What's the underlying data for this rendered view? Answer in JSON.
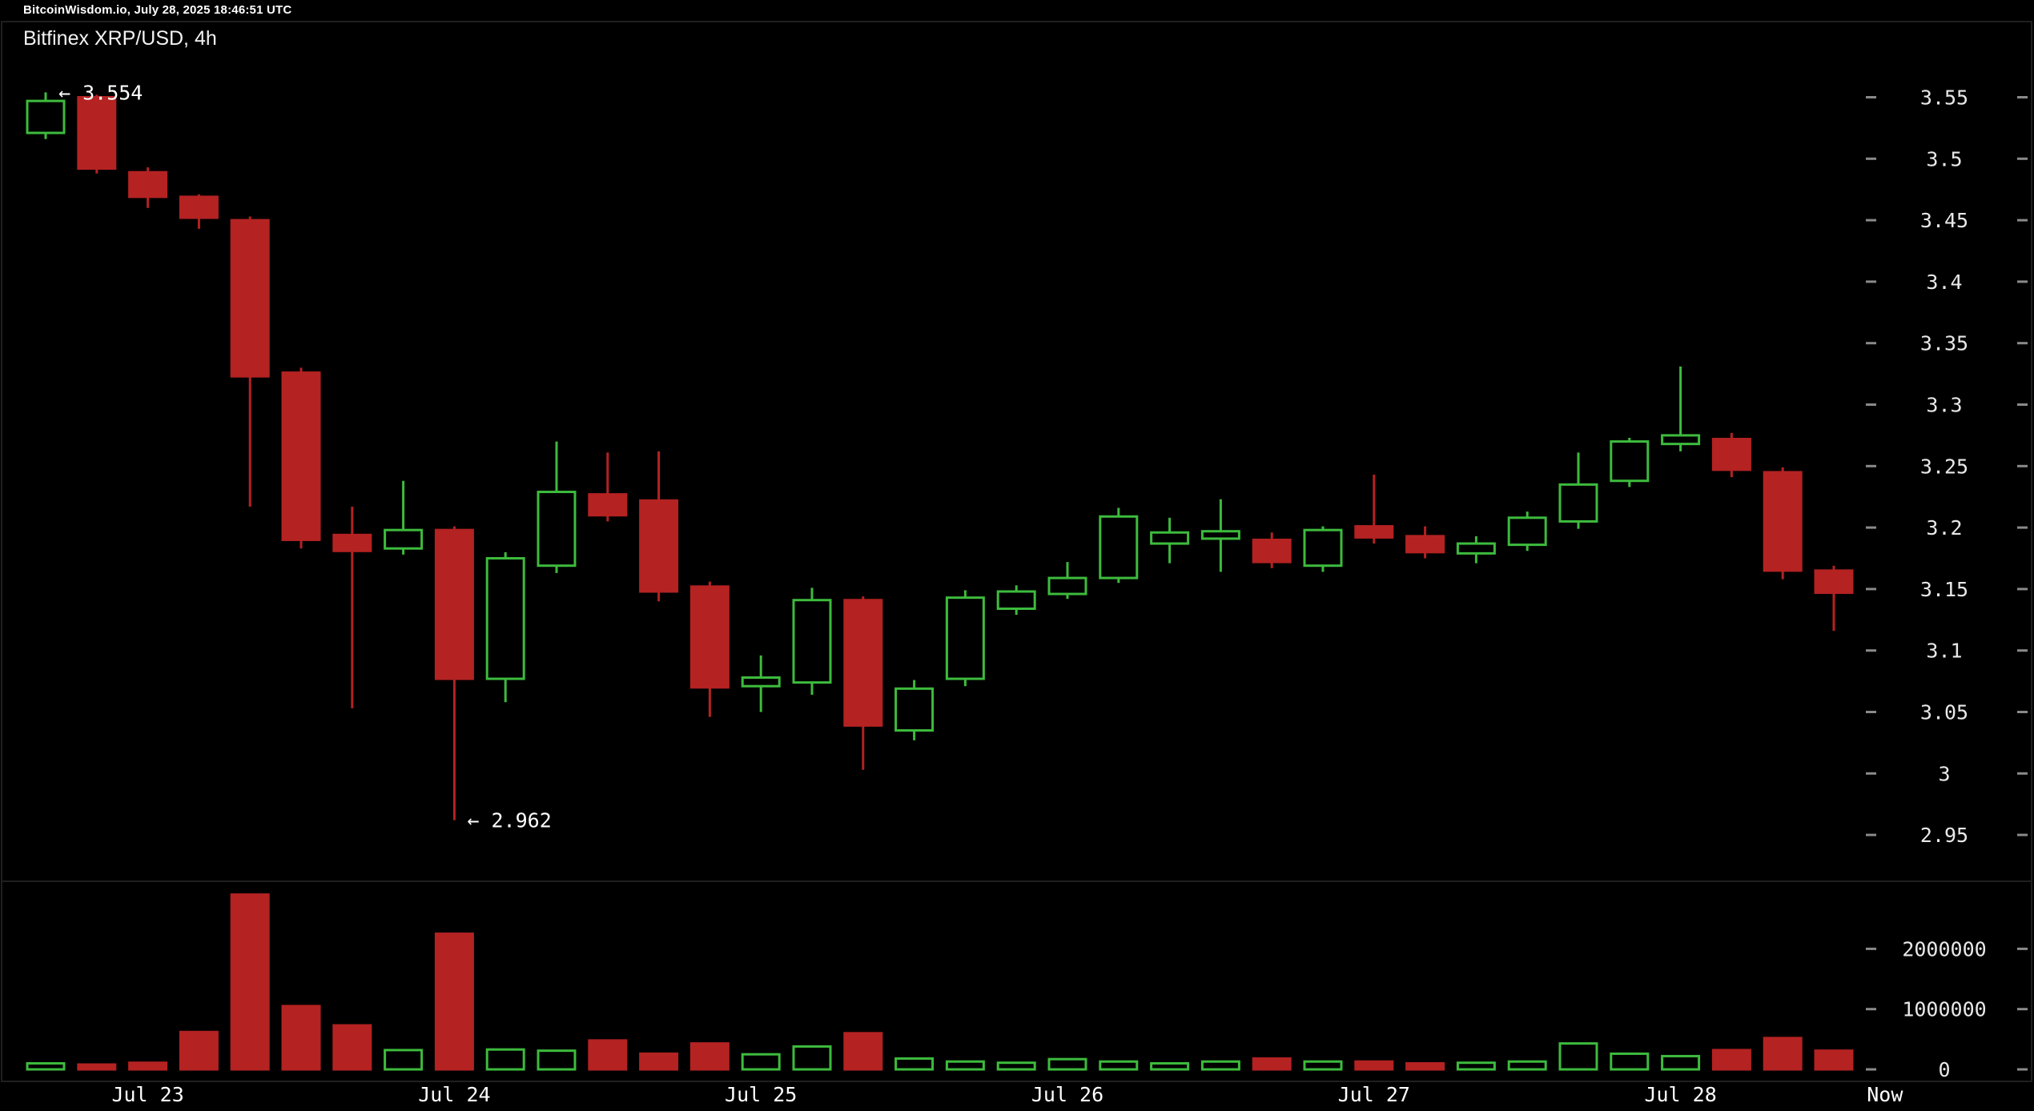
{
  "header": {
    "clock": "BitcoinWisdom.io, July 28, 2025 18:46:51 UTC"
  },
  "title": "Bitfinex XRP/USD, 4h",
  "colors": {
    "up": "#3dbb3d",
    "down": "#b42222",
    "background": "#000000",
    "text": "#ffffff",
    "axis_text": "#e8e8e8",
    "tick": "#8a8a8a",
    "panel_border": "#1f1f1f"
  },
  "chart_data": {
    "type": "candlestick",
    "title": "Bitfinex XRP/USD, 4h",
    "exchange_pair": "Bitfinex XRP/USD",
    "interval": "4h",
    "session_high": 3.554,
    "session_low": 2.962,
    "price_axis": {
      "ticks": [
        3.55,
        3.5,
        3.45,
        3.4,
        3.35,
        3.3,
        3.25,
        3.2,
        3.15,
        3.1,
        3.05,
        3,
        2.95
      ]
    },
    "volume_axis": {
      "ticks": [
        2000000,
        1000000,
        0
      ]
    },
    "x_axis": {
      "labels": [
        {
          "label": "Jul 23",
          "candle": 2
        },
        {
          "label": "Jul 24",
          "candle": 8
        },
        {
          "label": "Jul 25",
          "candle": 14
        },
        {
          "label": "Jul 26",
          "candle": 20
        },
        {
          "label": "Jul 27",
          "candle": 26
        },
        {
          "label": "Jul 28",
          "candle": 32
        },
        {
          "label": "Now",
          "candle": 36
        }
      ]
    },
    "annotations": [
      {
        "text": "← 3.554",
        "candle": 0,
        "price": 3.554
      },
      {
        "text": "← 2.962",
        "candle": 8,
        "price": 2.962
      }
    ],
    "candles": [
      {
        "o": 3.521,
        "h": 3.554,
        "l": 3.516,
        "c": 3.547,
        "v": 100000
      },
      {
        "o": 3.55,
        "h": 3.552,
        "l": 3.488,
        "c": 3.492,
        "v": 80000
      },
      {
        "o": 3.489,
        "h": 3.493,
        "l": 3.46,
        "c": 3.469,
        "v": 110000
      },
      {
        "o": 3.469,
        "h": 3.471,
        "l": 3.443,
        "c": 3.452,
        "v": 620000
      },
      {
        "o": 3.45,
        "h": 3.453,
        "l": 3.217,
        "c": 3.323,
        "v": 2900000
      },
      {
        "o": 3.326,
        "h": 3.33,
        "l": 3.183,
        "c": 3.19,
        "v": 1050000
      },
      {
        "o": 3.194,
        "h": 3.217,
        "l": 3.053,
        "c": 3.181,
        "v": 730000
      },
      {
        "o": 3.183,
        "h": 3.238,
        "l": 3.178,
        "c": 3.198,
        "v": 320000
      },
      {
        "o": 3.198,
        "h": 3.201,
        "l": 2.962,
        "c": 3.077,
        "v": 2250000
      },
      {
        "o": 3.077,
        "h": 3.18,
        "l": 3.058,
        "c": 3.175,
        "v": 330000
      },
      {
        "o": 3.169,
        "h": 3.27,
        "l": 3.163,
        "c": 3.229,
        "v": 310000
      },
      {
        "o": 3.227,
        "h": 3.261,
        "l": 3.205,
        "c": 3.21,
        "v": 480000
      },
      {
        "o": 3.222,
        "h": 3.262,
        "l": 3.14,
        "c": 3.148,
        "v": 260000
      },
      {
        "o": 3.152,
        "h": 3.156,
        "l": 3.046,
        "c": 3.07,
        "v": 430000
      },
      {
        "o": 3.071,
        "h": 3.096,
        "l": 3.05,
        "c": 3.078,
        "v": 250000
      },
      {
        "o": 3.074,
        "h": 3.151,
        "l": 3.064,
        "c": 3.141,
        "v": 380000
      },
      {
        "o": 3.141,
        "h": 3.144,
        "l": 3.003,
        "c": 3.039,
        "v": 600000
      },
      {
        "o": 3.035,
        "h": 3.076,
        "l": 3.027,
        "c": 3.069,
        "v": 180000
      },
      {
        "o": 3.077,
        "h": 3.149,
        "l": 3.071,
        "c": 3.143,
        "v": 130000
      },
      {
        "o": 3.134,
        "h": 3.153,
        "l": 3.129,
        "c": 3.148,
        "v": 110000
      },
      {
        "o": 3.146,
        "h": 3.172,
        "l": 3.142,
        "c": 3.159,
        "v": 170000
      },
      {
        "o": 3.159,
        "h": 3.216,
        "l": 3.155,
        "c": 3.209,
        "v": 130000
      },
      {
        "o": 3.187,
        "h": 3.208,
        "l": 3.171,
        "c": 3.196,
        "v": 100000
      },
      {
        "o": 3.191,
        "h": 3.223,
        "l": 3.164,
        "c": 3.197,
        "v": 130000
      },
      {
        "o": 3.19,
        "h": 3.196,
        "l": 3.167,
        "c": 3.172,
        "v": 180000
      },
      {
        "o": 3.169,
        "h": 3.201,
        "l": 3.164,
        "c": 3.198,
        "v": 130000
      },
      {
        "o": 3.201,
        "h": 3.243,
        "l": 3.187,
        "c": 3.192,
        "v": 130000
      },
      {
        "o": 3.193,
        "h": 3.201,
        "l": 3.175,
        "c": 3.18,
        "v": 100000
      },
      {
        "o": 3.179,
        "h": 3.193,
        "l": 3.171,
        "c": 3.187,
        "v": 110000
      },
      {
        "o": 3.186,
        "h": 3.213,
        "l": 3.181,
        "c": 3.208,
        "v": 130000
      },
      {
        "o": 3.205,
        "h": 3.261,
        "l": 3.199,
        "c": 3.235,
        "v": 430000
      },
      {
        "o": 3.238,
        "h": 3.273,
        "l": 3.233,
        "c": 3.27,
        "v": 260000
      },
      {
        "o": 3.268,
        "h": 3.331,
        "l": 3.262,
        "c": 3.275,
        "v": 220000
      },
      {
        "o": 3.272,
        "h": 3.277,
        "l": 3.241,
        "c": 3.247,
        "v": 320000
      },
      {
        "o": 3.245,
        "h": 3.249,
        "l": 3.158,
        "c": 3.165,
        "v": 520000
      },
      {
        "o": 3.165,
        "h": 3.169,
        "l": 3.116,
        "c": 3.147,
        "v": 310000
      }
    ]
  }
}
